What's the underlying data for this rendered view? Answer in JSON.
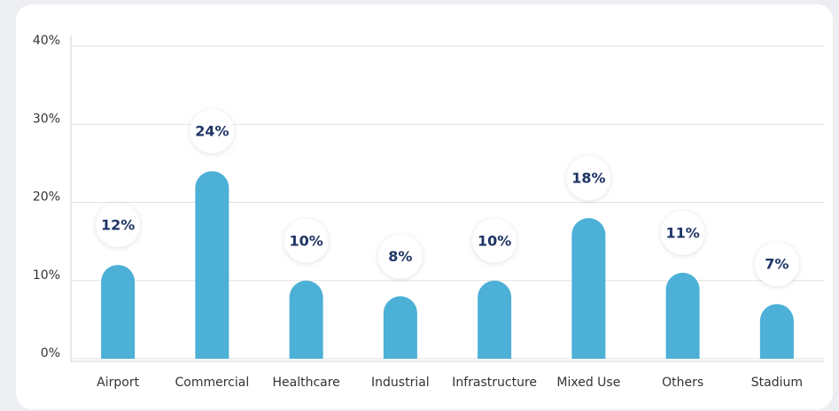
{
  "chart_data": {
    "type": "bar",
    "categories": [
      "Airport",
      "Commercial",
      "Healthcare",
      "Industrial",
      "Infrastructure",
      "Mixed Use",
      "Others",
      "Stadium"
    ],
    "values": [
      12,
      24,
      10,
      8,
      10,
      18,
      11,
      7
    ],
    "value_labels": [
      "12%",
      "24%",
      "10%",
      "8%",
      "10%",
      "18%",
      "11%",
      "7%"
    ],
    "color": "#4cb0d7",
    "ylim": [
      0,
      40
    ],
    "yticks": [
      {
        "value": 0,
        "label": "0%"
      },
      {
        "value": 10,
        "label": "10%"
      },
      {
        "value": 20,
        "label": "20%"
      },
      {
        "value": 30,
        "label": "30%"
      },
      {
        "value": 40,
        "label": "40%"
      }
    ],
    "grid": true
  }
}
